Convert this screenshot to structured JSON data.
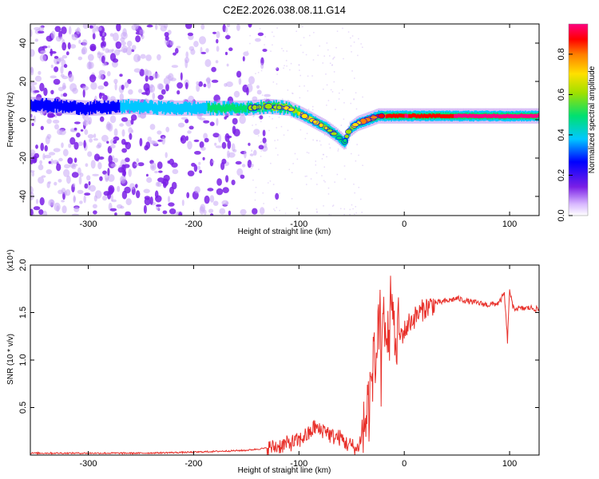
{
  "title": "C2E2.2026.038.08.11.G14",
  "chart_data": [
    {
      "type": "heatmap",
      "name": "spectrogram",
      "xlabel": "Height of straight line (km)",
      "ylabel": "Frequency (Hz)",
      "xlim": [
        -355,
        128
      ],
      "ylim": [
        -50,
        50
      ],
      "x_ticks": [
        -300,
        -200,
        -100,
        0,
        100
      ],
      "x_tick_labels": [
        "-300",
        "-200",
        "-100",
        "0",
        "100"
      ],
      "y_ticks": [
        -40,
        -20,
        0,
        20,
        40
      ],
      "y_tick_labels": [
        "-40",
        "-20",
        "0",
        "20",
        "40"
      ],
      "colorbar": {
        "label": "Normalized spectral amplitude",
        "range": [
          0,
          0.95
        ],
        "ticks": [
          0,
          0.2,
          0.4,
          0.6,
          0.8
        ],
        "tick_labels": [
          "0.0",
          "0.2",
          "0.4",
          "0.6",
          "0.8"
        ],
        "colormap": [
          "#ffffff",
          "#7a1fe6",
          "#0000ff",
          "#00c8ff",
          "#00e070",
          "#a0e000",
          "#ffe000",
          "#ff8000",
          "#ff0000",
          "#ff0080"
        ]
      },
      "ridge": {
        "description": "dominant frequency ridge",
        "x": [
          -355,
          -300,
          -260,
          -220,
          -180,
          -150,
          -130,
          -110,
          -95,
          -85,
          -75,
          -65,
          -57,
          -52,
          -45,
          -35,
          -25,
          -10,
          0,
          20,
          50,
          128
        ],
        "freq": [
          8,
          6,
          7,
          6,
          6,
          6,
          7,
          6,
          2,
          -1,
          -4,
          -8,
          -12,
          -5,
          -2,
          0,
          2,
          2,
          2,
          2,
          2,
          2
        ],
        "amplitude": [
          0.18,
          0.22,
          0.28,
          0.32,
          0.38,
          0.42,
          0.5,
          0.55,
          0.6,
          0.58,
          0.55,
          0.45,
          0.38,
          0.5,
          0.6,
          0.7,
          0.75,
          0.85,
          0.9,
          0.88,
          0.9,
          0.9
        ]
      },
      "noise_region_x": [
        -355,
        -140
      ]
    },
    {
      "type": "line",
      "name": "snr",
      "xlabel": "Height of straight line (km)",
      "ylabel": "SNR (10 * v/v)",
      "y_scale_label": "(x10⁴)",
      "xlim": [
        -355,
        128
      ],
      "ylim": [
        0,
        2.0
      ],
      "x_ticks": [
        -300,
        -200,
        -100,
        0,
        100
      ],
      "x_tick_labels": [
        "-300",
        "-200",
        "-100",
        "0",
        "100"
      ],
      "y_ticks": [
        0.5,
        1.0,
        1.5,
        2.0
      ],
      "y_tick_labels": [
        "0.5",
        "1.0",
        "1.5",
        "2.0"
      ],
      "line_color": "#e8302a",
      "series": [
        {
          "name": "SNR",
          "x": [
            -355,
            -300,
            -250,
            -200,
            -150,
            -125,
            -110,
            -100,
            -95,
            -90,
            -85,
            -80,
            -75,
            -70,
            -60,
            -55,
            -50,
            -45,
            -42,
            -38,
            -35,
            -30,
            -27,
            -25,
            -22,
            -20,
            -17,
            -15,
            -12,
            -10,
            -5,
            0,
            5,
            10,
            20,
            30,
            40,
            50,
            60,
            70,
            80,
            90,
            95,
            98,
            100,
            103,
            110,
            120,
            128
          ],
          "y": [
            0.02,
            0.02,
            0.02,
            0.03,
            0.05,
            0.08,
            0.12,
            0.15,
            0.2,
            0.22,
            0.3,
            0.25,
            0.28,
            0.2,
            0.18,
            0.12,
            0.1,
            0.05,
            0.15,
            0.3,
            0.45,
            0.8,
            1.0,
            1.2,
            0.9,
            1.3,
            1.1,
            1.4,
            1.2,
            1.3,
            1.25,
            1.3,
            1.4,
            1.45,
            1.55,
            1.6,
            1.62,
            1.65,
            1.62,
            1.6,
            1.58,
            1.6,
            1.7,
            1.2,
            1.75,
            1.55,
            1.54,
            1.55,
            1.53
          ]
        }
      ]
    }
  ]
}
